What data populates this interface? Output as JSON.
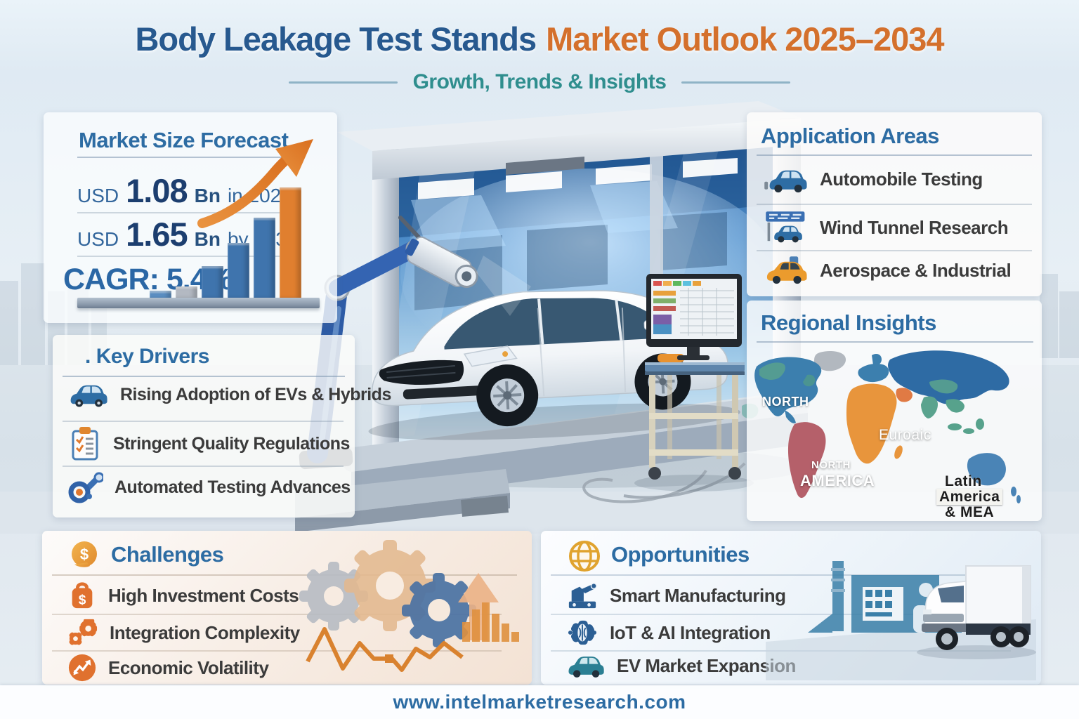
{
  "header": {
    "title_primary": "Body Leakage Test Stands",
    "title_secondary": "Market Outlook 2025–2034",
    "subtitle": "Growth, Trends & Insights"
  },
  "market_size": {
    "title": "Market Size Forecast",
    "stat_2026": {
      "currency": "USD",
      "value": "1.08",
      "unit": "Bn",
      "period": "in 2026"
    },
    "stat_2034": {
      "currency": "USD",
      "value": "1.65",
      "unit": "Bn",
      "period": "by 2034"
    },
    "cagr": "CAGR: 5.4%"
  },
  "chart_data": {
    "type": "bar",
    "title": "Market Size Forecast growth bars (decorative, axes unlabeled)",
    "categories": [
      "1",
      "2",
      "3",
      "4",
      "5",
      "6"
    ],
    "values": [
      7,
      11,
      29,
      50,
      73,
      100
    ],
    "unit": "relative height, % of tallest bar",
    "bar_colors": [
      "#5b8fc3",
      "#b3b9c2",
      "#3f74ad",
      "#3f74ad",
      "#3f74ad",
      "#e07f2f"
    ],
    "annotations": [
      "USD 1.08 Bn in 2026",
      "USD 1.65 Bn by 2034",
      "CAGR: 5.4%",
      "orange upward trend arrow"
    ],
    "xlabel": "",
    "ylabel": "",
    "grid": false,
    "legend": false
  },
  "key_drivers": {
    "bullet": ".",
    "title": "Key Drivers",
    "items": [
      {
        "icon": "car-icon",
        "label": "Rising Adoption of EVs & Hybrids"
      },
      {
        "icon": "checklist-clipboard-icon",
        "label": "Stringent Quality Regulations"
      },
      {
        "icon": "robotic-wrench-icon",
        "label": "Automated Testing Advances"
      }
    ]
  },
  "application_areas": {
    "title": "Application Areas",
    "items": [
      {
        "icon": "blue-car-icon",
        "label": "Automobile Testing"
      },
      {
        "icon": "wind-tunnel-car-icon",
        "label": "Wind Tunnel Research"
      },
      {
        "icon": "orange-car-icon",
        "label": "Aerospace & Industrial"
      }
    ]
  },
  "regional_insights": {
    "title": "Regional Insights",
    "map_labels": {
      "north_america": "NORTH",
      "south_america_line1": "NORTH",
      "south_america_line2": "AMERICA",
      "africa": "Euroaic",
      "mea_line1": "Latin",
      "mea_line2": "America",
      "mea_line3": "& MEA"
    }
  },
  "challenges": {
    "title": "Challenges",
    "coin_glyph": "$",
    "bag_glyph": "$",
    "items": [
      {
        "icon": "investment-bag-icon",
        "label": "High Investment Costs"
      },
      {
        "icon": "gears-icon",
        "label": "Integration Complexity"
      },
      {
        "icon": "volatility-icon",
        "label": "Economic Volatility"
      }
    ]
  },
  "opportunities": {
    "title": "Opportunities",
    "items": [
      {
        "icon": "smart-factory-icon",
        "label": "Smart Manufacturing"
      },
      {
        "icon": "iot-gear-icon",
        "label": "IoT & AI Integration"
      },
      {
        "icon": "ev-car-icon",
        "label": "EV Market Expansion"
      }
    ]
  },
  "footer": {
    "url": "www.intelmarketresearch.com"
  },
  "colors": {
    "title_blue": "#27598f",
    "title_orange": "#d4702c",
    "subtitle_teal": "#2f8e8e",
    "heading_blue": "#2d6ca3",
    "stat_navy": "#1c3e6f",
    "body_text": "#3b3b3b",
    "accent_orange": "#e07f2f",
    "challenge_icon_orange": "#e0712e",
    "opportunity_icon_blue": "#2c5f94",
    "map_north_america": "#3c7fae",
    "map_south_america": "#b5606a",
    "map_africa": "#e8953c",
    "map_asia": "#2e6ba4",
    "map_teal": "#57a28c",
    "map_greenland": "#b2b8bf",
    "map_australia": "#4a84b6"
  }
}
